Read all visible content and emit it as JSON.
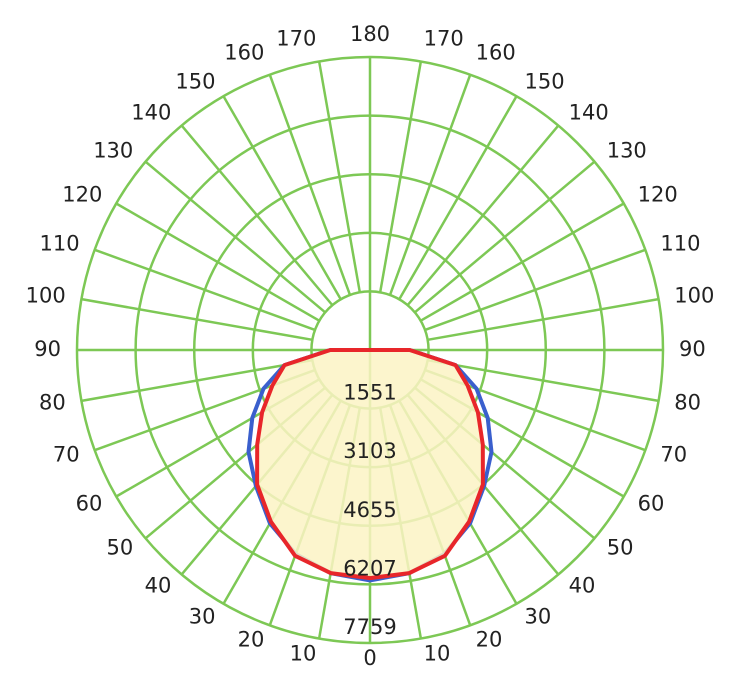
{
  "chart_data": {
    "type": "polar",
    "rlim": [
      0,
      7759
    ],
    "rticks": [
      1551,
      3103,
      4655,
      6207,
      7759
    ],
    "angle_ticks": [
      {
        "value": -170,
        "label": "170"
      },
      {
        "value": -160,
        "label": "160"
      },
      {
        "value": -150,
        "label": "150"
      },
      {
        "value": -140,
        "label": "140"
      },
      {
        "value": -130,
        "label": "130"
      },
      {
        "value": -120,
        "label": "120"
      },
      {
        "value": -110,
        "label": "110"
      },
      {
        "value": -100,
        "label": "100"
      },
      {
        "value": -90,
        "label": "90"
      },
      {
        "value": -80,
        "label": "80"
      },
      {
        "value": -70,
        "label": "70"
      },
      {
        "value": -60,
        "label": "60"
      },
      {
        "value": -50,
        "label": "50"
      },
      {
        "value": -40,
        "label": "40"
      },
      {
        "value": -30,
        "label": "30"
      },
      {
        "value": -20,
        "label": "20"
      },
      {
        "value": -10,
        "label": "10"
      },
      0,
      10,
      20,
      30,
      40,
      50,
      60,
      70,
      80,
      90,
      100,
      110,
      120,
      130,
      140,
      150,
      160,
      170,
      180
    ],
    "grid_color": "#7dc855",
    "fill_color": "#fbf3c4",
    "x": [
      -90,
      -80,
      -70,
      -60,
      -50,
      -40,
      -30,
      -20,
      -10,
      0,
      10,
      20,
      30,
      40,
      50,
      60,
      70,
      80,
      90
    ],
    "series": [
      {
        "color": "#3a5fcd",
        "values": [
          1050,
          2300,
          3000,
          3600,
          4200,
          4700,
          5300,
          5750,
          6000,
          6100,
          6000,
          5750,
          5300,
          4700,
          4200,
          3600,
          3000,
          2300,
          1050
        ]
      },
      {
        "color": "#e8262a",
        "values": [
          1050,
          2300,
          2750,
          3300,
          3900,
          4650,
          5250,
          5800,
          6000,
          6040,
          6000,
          5800,
          5250,
          4650,
          3900,
          3300,
          2750,
          2300,
          1050
        ]
      }
    ]
  }
}
